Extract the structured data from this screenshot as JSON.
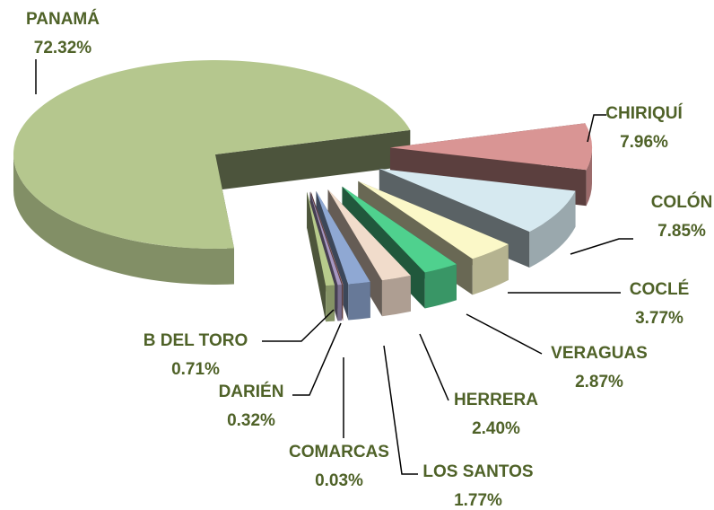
{
  "chart_data": {
    "type": "pie",
    "categories": [
      "CHIRIQUÍ",
      "COLÓN",
      "COCLÉ",
      "VERAGUAS",
      "HERRERA",
      "LOS SANTOS",
      "COMARCAS",
      "DARIÉN",
      "B DEL TORO",
      "PANAMÁ"
    ],
    "values": [
      7.96,
      7.85,
      3.77,
      2.87,
      2.4,
      1.77,
      0.03,
      0.32,
      0.71,
      72.32
    ],
    "value_labels": [
      "7.96%",
      "7.85%",
      "3.77%",
      "2.87%",
      "2.40%",
      "1.77%",
      "0.03%",
      "0.32%",
      "0.71%",
      "72.32%"
    ],
    "colors": [
      "#d99594",
      "#d6e9f0",
      "#fbf8c8",
      "#4fd18e",
      "#f1dccb",
      "#8fa8d3",
      "#d99594",
      "#a797c2",
      "#b8cb8c",
      "#b5c78e"
    ]
  }
}
